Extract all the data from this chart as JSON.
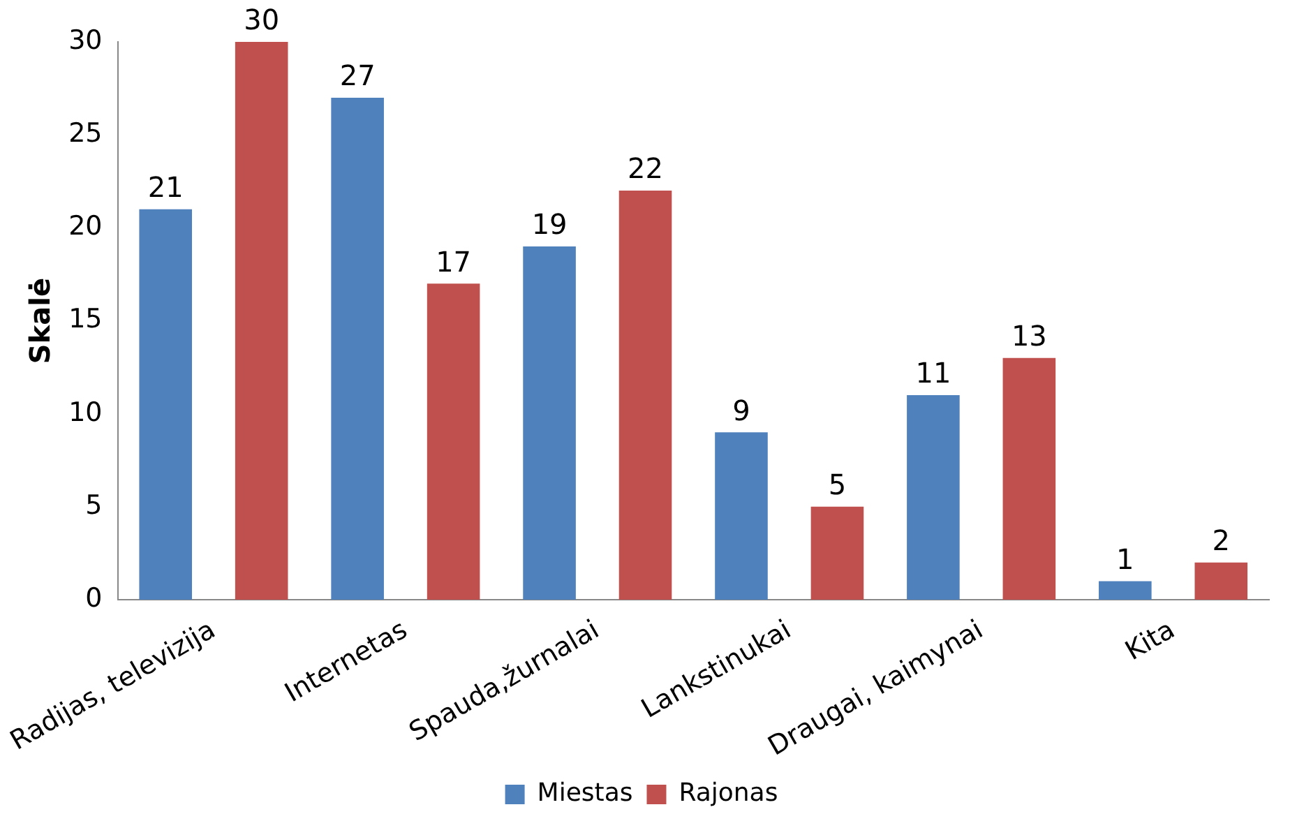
{
  "chart_data": {
    "type": "bar",
    "ylabel": "Skalė",
    "categories": [
      "Radijas, televizija",
      "Internetas",
      "Spauda,žurnalai",
      "Lankstinukai",
      "Draugai, kaimynai",
      "Kita"
    ],
    "series": [
      {
        "name": "Miestas",
        "color": "#4f81bd",
        "values": [
          21,
          27,
          19,
          9,
          11,
          1
        ]
      },
      {
        "name": "Rajonas",
        "color": "#c0504d",
        "values": [
          30,
          17,
          22,
          5,
          13,
          2
        ]
      }
    ],
    "ylim": [
      0,
      30
    ],
    "yticks": [
      0,
      5,
      10,
      15,
      20,
      25,
      30
    ],
    "grid": false,
    "legend": "bottom",
    "data_labels": true
  }
}
